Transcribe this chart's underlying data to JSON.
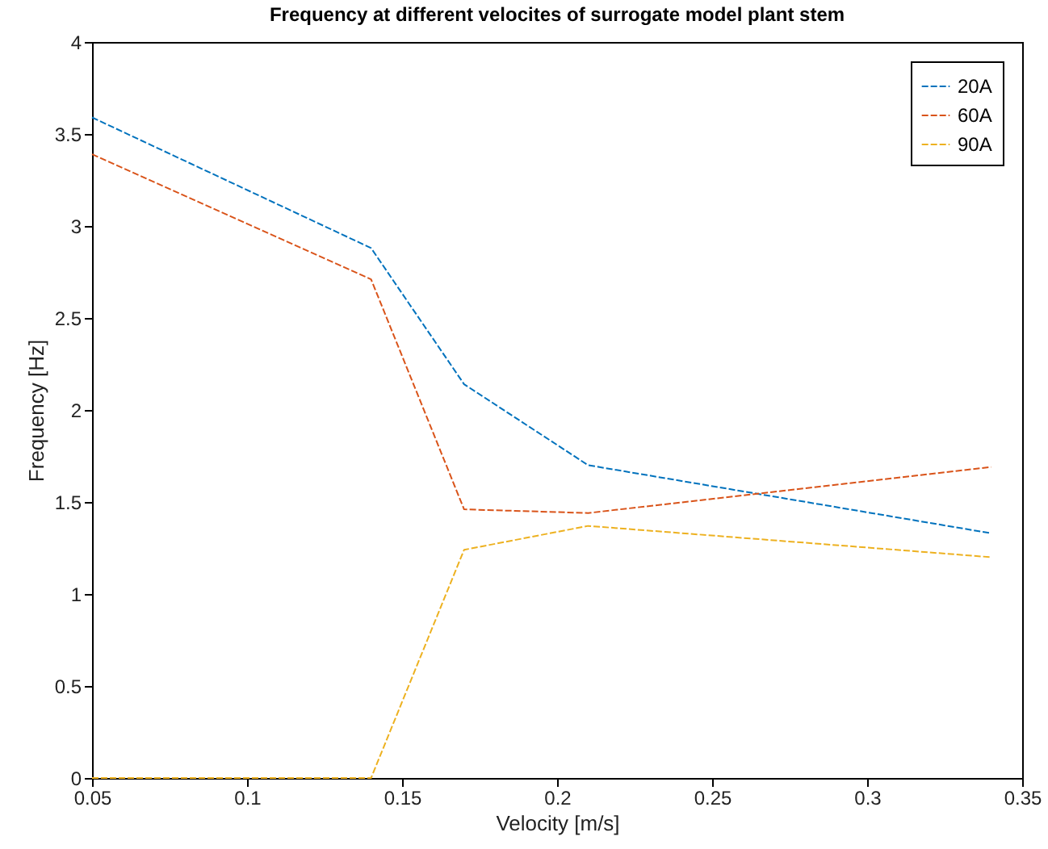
{
  "chart_data": {
    "type": "line",
    "title": "Frequency at different velocites of surrogate model plant stem",
    "xlabel": "Velocity [m/s]",
    "ylabel": "Frequency [Hz]",
    "x": [
      0.05,
      0.14,
      0.17,
      0.21,
      0.34
    ],
    "series": [
      {
        "name": "20A",
        "color": "#0072bd",
        "values": [
          3.59,
          2.88,
          2.14,
          1.7,
          1.33
        ]
      },
      {
        "name": "60A",
        "color": "#d95319",
        "values": [
          3.39,
          2.71,
          1.46,
          1.44,
          1.69
        ]
      },
      {
        "name": "90A",
        "color": "#edb120",
        "values": [
          0,
          0,
          1.24,
          1.37,
          1.2
        ]
      }
    ],
    "xlim": [
      0.05,
      0.35
    ],
    "xticks": [
      0.05,
      0.1,
      0.15,
      0.2,
      0.25,
      0.3,
      0.35
    ],
    "ylim": [
      0,
      4
    ],
    "yticks": [
      0,
      0.5,
      1,
      1.5,
      2,
      2.5,
      3,
      3.5,
      4
    ],
    "grid": false,
    "legend": "top right",
    "line_style": "dashed",
    "marker": "none"
  }
}
